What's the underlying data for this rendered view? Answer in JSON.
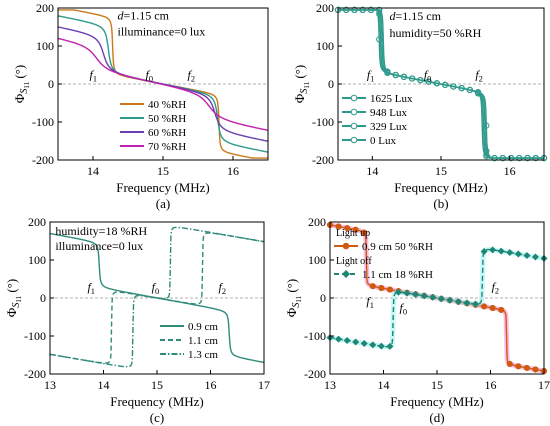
{
  "figure": {
    "ylabel_main": "Φ",
    "ylabel_sub": "S",
    "ylabel_subsub": "11",
    "ylabel_unit": " (°)",
    "xlabel": "Frequency (MHz)"
  },
  "chart_data": [
    {
      "panel_label": "(a)",
      "type": "line",
      "xlim": [
        13.5,
        16.5
      ],
      "ylim": [
        -200,
        200
      ],
      "xticks": [
        14,
        15,
        16
      ],
      "yticks": [
        -200,
        -100,
        0,
        100,
        200
      ],
      "xlabel": "Frequency (MHz)",
      "annotations": [
        {
          "parts": [
            {
              "t": "d",
              "i": true
            },
            {
              "t": "=1.15 cm"
            }
          ],
          "x": 14.35,
          "y": 170
        },
        {
          "parts": [
            {
              "t": "illuminance=0 lux"
            }
          ],
          "x": 14.35,
          "y": 128
        },
        {
          "parts": [
            {
              "t": "f",
              "i": true
            },
            {
              "t": "1",
              "s": true
            }
          ],
          "x": 13.95,
          "y": 15
        },
        {
          "parts": [
            {
              "t": "f",
              "i": true
            },
            {
              "t": "0",
              "s": true
            }
          ],
          "x": 14.75,
          "y": 15
        },
        {
          "parts": [
            {
              "t": "f",
              "i": true
            },
            {
              "t": "2",
              "s": true
            }
          ],
          "x": 15.35,
          "y": 15
        }
      ],
      "legend": {
        "position": "lower-center"
      },
      "series": [
        {
          "name": "40 %RH",
          "color": "#c87a16",
          "dash": "solid",
          "marker": "none",
          "labeled": true,
          "f0": 14.28,
          "f1": 15.8,
          "a": -68,
          "b": -46,
          "amp": 140,
          "w": 0.01,
          "neg": true
        },
        {
          "name": "50 %RH",
          "color": "#2f9a8c",
          "dash": "solid",
          "marker": "none",
          "labeled": true,
          "f0": 14.22,
          "f1": 15.78,
          "a": -72,
          "b": -50,
          "amp": 120,
          "w": 0.03,
          "neg": true
        },
        {
          "name": "60 %RH",
          "color": "#6a3fb0",
          "dash": "solid",
          "marker": "none",
          "labeled": true,
          "f0": 14.15,
          "f1": 15.74,
          "a": -78,
          "b": -56,
          "amp": 95,
          "w": 0.06,
          "neg": true
        },
        {
          "name": "70 %RH",
          "color": "#c020b0",
          "dash": "solid",
          "marker": "none",
          "labeled": true,
          "f0": 14.05,
          "f1": 15.66,
          "a": -86,
          "b": -66,
          "amp": 70,
          "w": 0.12,
          "neg": true
        }
      ]
    },
    {
      "panel_label": "(b)",
      "type": "line",
      "xlim": [
        13.5,
        16.5
      ],
      "ylim": [
        -200,
        200
      ],
      "xticks": [
        14,
        15,
        16
      ],
      "yticks": [
        -200,
        -100,
        0,
        100,
        200
      ],
      "xlabel": "Frequency (MHz)",
      "annotations": [
        {
          "parts": [
            {
              "t": "d",
              "i": true
            },
            {
              "t": "=1.15 cm"
            }
          ],
          "x": 14.25,
          "y": 168
        },
        {
          "parts": [
            {
              "t": "humidity=50 %RH"
            }
          ],
          "x": 14.25,
          "y": 124
        },
        {
          "parts": [
            {
              "t": "f",
              "i": true
            },
            {
              "t": "1",
              "s": true
            }
          ],
          "x": 13.92,
          "y": 15
        },
        {
          "parts": [
            {
              "t": "f",
              "i": true
            },
            {
              "t": "0",
              "s": true
            }
          ],
          "x": 14.75,
          "y": 15
        },
        {
          "parts": [
            {
              "t": "f",
              "i": true
            },
            {
              "t": "2",
              "s": true
            }
          ],
          "x": 15.5,
          "y": 15
        }
      ],
      "legend": {
        "position": "lower-left"
      },
      "series": [
        {
          "name": "1625 Lux",
          "color": "#2f9a8c",
          "dash": "solid",
          "marker": "circle",
          "labeled": true,
          "f0": 14.1,
          "f1": 15.6,
          "a": -100,
          "b": -90,
          "amp": 160,
          "w": 0.008,
          "neg": true
        },
        {
          "name": "948 Lux",
          "color": "#2f9a8c",
          "dash": "solid",
          "marker": "circle",
          "labeled": true,
          "f0": 14.12,
          "f1": 15.62,
          "a": -100,
          "b": -90,
          "amp": 160,
          "w": 0.008,
          "neg": true
        },
        {
          "name": "329 Lux",
          "color": "#2f9a8c",
          "dash": "solid",
          "marker": "circle",
          "labeled": true,
          "f0": 14.14,
          "f1": 15.64,
          "a": -100,
          "b": -90,
          "amp": 160,
          "w": 0.008,
          "neg": true
        },
        {
          "name": "0 Lux",
          "color": "#2f9a8c",
          "dash": "solid",
          "marker": "circle",
          "labeled": true,
          "f0": 14.16,
          "f1": 15.66,
          "a": -100,
          "b": -90,
          "amp": 160,
          "w": 0.008,
          "neg": true
        }
      ]
    },
    {
      "panel_label": "(c)",
      "type": "line",
      "xlim": [
        13,
        17
      ],
      "ylim": [
        -200,
        200
      ],
      "xticks": [
        13,
        14,
        15,
        16,
        17
      ],
      "yticks": [
        -200,
        -100,
        0,
        100,
        200
      ],
      "xlabel": "Frequency (MHz)",
      "annotations": [
        {
          "parts": [
            {
              "t": "humidity=18 %RH"
            }
          ],
          "x": 13.1,
          "y": 166
        },
        {
          "parts": [
            {
              "t": "illuminance=0 lux"
            }
          ],
          "x": 13.1,
          "y": 126
        },
        {
          "parts": [
            {
              "t": "f",
              "i": true
            },
            {
              "t": "1",
              "s": true
            }
          ],
          "x": 13.7,
          "y": 18
        },
        {
          "parts": [
            {
              "t": "f",
              "i": true
            },
            {
              "t": "0",
              "s": true
            }
          ],
          "x": 14.9,
          "y": 18
        },
        {
          "parts": [
            {
              "t": "f",
              "i": true
            },
            {
              "t": "2",
              "s": true
            }
          ],
          "x": 16.15,
          "y": 18
        }
      ],
      "legend": {
        "position": "lower-right"
      },
      "series": [
        {
          "name": "0.9 cm",
          "color": "#2f8a7c",
          "dash": "solid",
          "marker": "none",
          "labeled": true,
          "f0": 13.92,
          "f1": 16.35,
          "a": -75,
          "b": -55,
          "amp": 110,
          "w": 0.015,
          "neg": true
        },
        {
          "name": "1.1 cm",
          "color": "#2f8a7c",
          "dash": "dashed",
          "marker": "none",
          "labeled": true,
          "f0": 14.15,
          "f1": 15.85,
          "a": -60,
          "b": -45,
          "amp": 180,
          "w": 0.005,
          "neg": false
        },
        {
          "name": "1.3 cm",
          "color": "#2f8a7c",
          "dash": "dashdot",
          "marker": "none",
          "labeled": true,
          "f0": 14.55,
          "f1": 15.25,
          "a": -95,
          "b": -70,
          "amp": 180,
          "w": 0.005,
          "neg": false
        }
      ]
    },
    {
      "panel_label": "(d)",
      "type": "line",
      "xlim": [
        13,
        17
      ],
      "ylim": [
        -200,
        200
      ],
      "xticks": [
        13,
        14,
        15,
        16,
        17
      ],
      "yticks": [
        -200,
        -100,
        0,
        100,
        200
      ],
      "xlabel": "Frequency (MHz)",
      "annotations": [
        {
          "parts": [
            {
              "t": "f",
              "i": true
            },
            {
              "t": "1",
              "s": true
            }
          ],
          "x": 13.68,
          "y": -18
        },
        {
          "parts": [
            {
              "t": "f",
              "i": true
            },
            {
              "t": "0",
              "s": true
            }
          ],
          "x": 14.3,
          "y": -35
        },
        {
          "parts": [
            {
              "t": "f",
              "i": true
            },
            {
              "t": "2",
              "s": true
            }
          ],
          "x": 16.02,
          "y": 20
        }
      ],
      "legend": {
        "position": "top-left",
        "headers": [
          "Light up",
          "Light off"
        ]
      },
      "series": [
        {
          "name": "0.9 cm 50 %RH",
          "color": "#d05a10",
          "glow": "#f070c8",
          "dash": "solid",
          "marker": "circle",
          "labeled": true,
          "f0": 13.68,
          "f1": 16.3,
          "a": -55,
          "b": -40,
          "amp": 130,
          "w": 0.004,
          "neg": true
        },
        {
          "name": "1.1 cm 18 %RH",
          "color": "#1e8577",
          "glow": "#80f0e8",
          "dash": "dashed",
          "marker": "diamond",
          "labeled": true,
          "f0": 14.18,
          "f1": 15.85,
          "a": -60,
          "b": -45,
          "amp": 140,
          "w": 0.006,
          "neg": false
        }
      ]
    }
  ]
}
